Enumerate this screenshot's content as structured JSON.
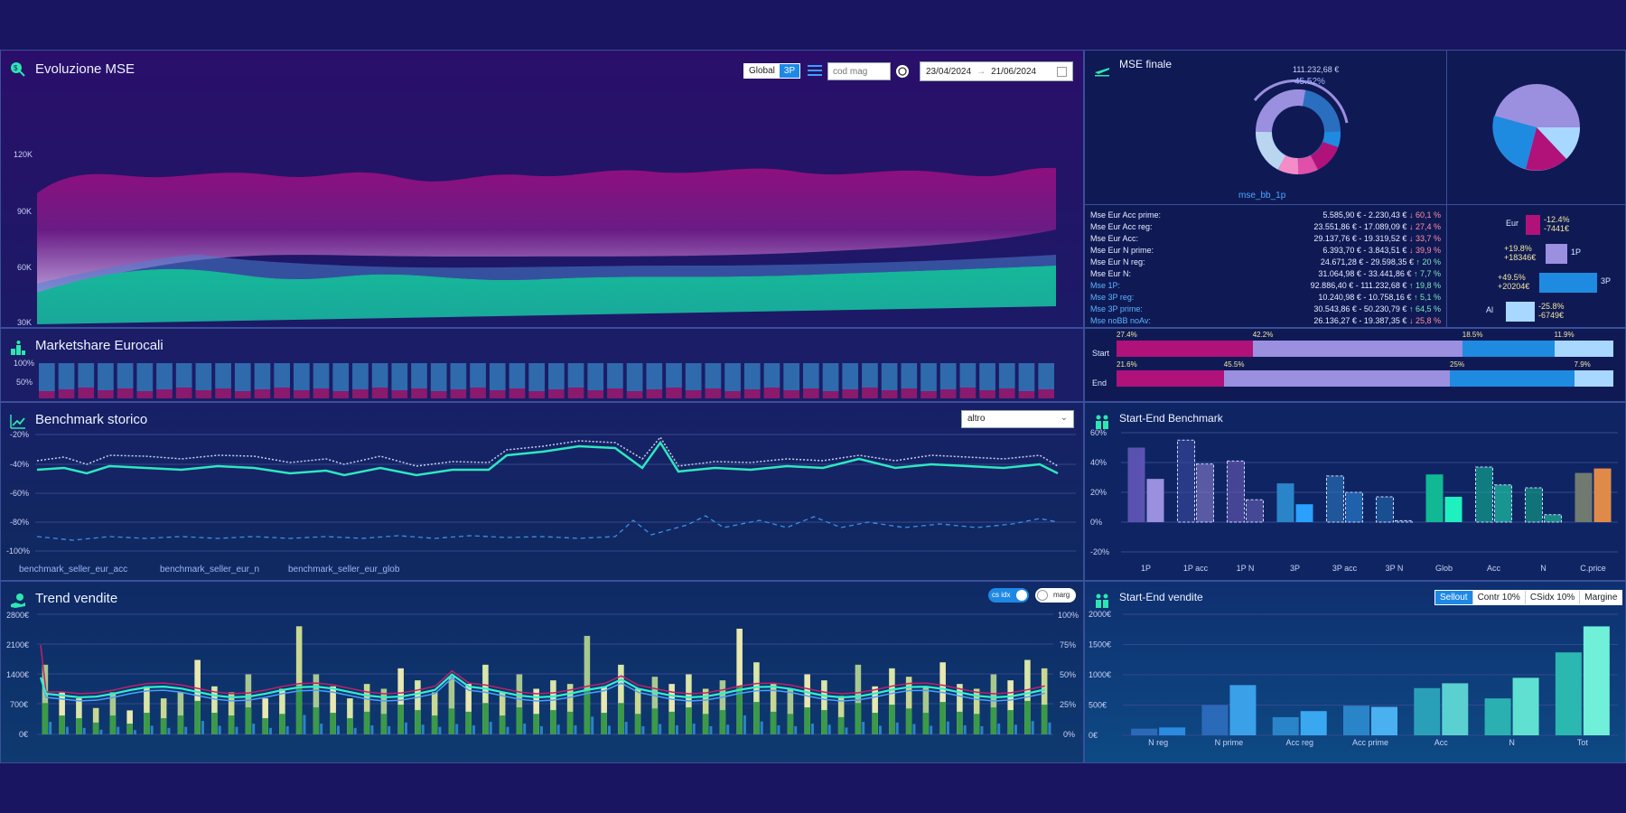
{
  "evo": {
    "title": "Evoluzione MSE",
    "toggle_global": "Global",
    "toggle_3p": "3P",
    "search_placeholder": "cod mag",
    "date_from": "23/04/2024",
    "date_sep": "→",
    "date_to": "21/06/2024",
    "yticks": [
      "120K",
      "90K",
      "60K",
      "30K"
    ]
  },
  "mse_finale": {
    "title": "MSE finale",
    "donut_value": "111.232,68 €",
    "donut_pct": "45.52%",
    "donut_label": "mse_bb_1p",
    "rows": [
      {
        "label": "Mse Eur Acc prime:",
        "value": "5.585,90 € - 2.230,43 €",
        "dir": "down",
        "pct": "60,1 %",
        "blue": false
      },
      {
        "label": "Mse Eur Acc reg:",
        "value": "23.551,86 € - 17.089,09 €",
        "dir": "down",
        "pct": "27,4 %",
        "blue": false
      },
      {
        "label": "Mse Eur Acc:",
        "value": "29.137,76 € - 19.319,52 €",
        "dir": "down",
        "pct": "33,7 %",
        "blue": false
      },
      {
        "label": "Mse Eur N prime:",
        "value": "6.393,70 € - 3.843,51 €",
        "dir": "down",
        "pct": "39,9 %",
        "blue": false
      },
      {
        "label": "Mse Eur N reg:",
        "value": "24.671,28 € - 29.598,35 €",
        "dir": "up",
        "pct": "20 %",
        "blue": false
      },
      {
        "label": "Mse Eur N:",
        "value": "31.064,98 € - 33.441,86 €",
        "dir": "up",
        "pct": "7,7 %",
        "blue": false
      },
      {
        "label": "Mse 1P:",
        "value": "92.886,40 € - 111.232,68 €",
        "dir": "up",
        "pct": "19,8 %",
        "blue": true
      },
      {
        "label": "Mse 3P reg:",
        "value": "10.240,98 € - 10.758,16 €",
        "dir": "up",
        "pct": "5,1 %",
        "blue": true
      },
      {
        "label": "Mse 3P prime:",
        "value": "30.543,86 € - 50.230,79 €",
        "dir": "up",
        "pct": "64,5 %",
        "blue": true
      },
      {
        "label": "Mse noBB noAv:",
        "value": "26.136,27 € - 19.387,35 €",
        "dir": "down",
        "pct": "25,8 %",
        "blue": true
      }
    ],
    "mini": [
      {
        "label": "Eur",
        "delta_pct": "-12.4%",
        "delta_abs": "-7441€",
        "color": "#b0127a"
      },
      {
        "label": "1P",
        "delta_pct": "+19.8%",
        "delta_abs": "+18346€",
        "color": "#9b8fe0"
      },
      {
        "label": "3P",
        "delta_pct": "+49.5%",
        "delta_abs": "+20204€",
        "color": "#1f8be0"
      },
      {
        "label": "Al",
        "delta_pct": "-25.8%",
        "delta_abs": "-6749€",
        "color": "#a8d8ff"
      }
    ]
  },
  "market": {
    "title": "Marketshare Eurocali",
    "yticks": [
      "100%",
      "50%"
    ],
    "start_label": "Start",
    "end_label": "End",
    "start": [
      27.4,
      42.2,
      18.5,
      11.9
    ],
    "end": [
      21.6,
      45.5,
      25,
      7.9
    ],
    "start_labels": [
      "27.4%",
      "42.2%",
      "18.5%",
      "11.9%"
    ],
    "end_labels": [
      "21.6%",
      "45.5%",
      "25%",
      "7.9%"
    ],
    "colors": [
      "#b0127a",
      "#9b8fe0",
      "#1f8be0",
      "#a8d8ff"
    ]
  },
  "bench": {
    "title": "Benchmark storico",
    "select_value": "altro",
    "yticks": [
      "-20%",
      "-40%",
      "-60%",
      "-80%",
      "-100%"
    ],
    "legend": [
      "benchmark_seller_eur_acc",
      "benchmark_seller_eur_n",
      "benchmark_seller_eur_glob"
    ]
  },
  "se_bench": {
    "title": "Start-End Benchmark",
    "yticks": [
      "60%",
      "40%",
      "20%",
      "0%",
      "-20%"
    ],
    "chart_data": {
      "type": "bar",
      "categories": [
        "1P",
        "1P acc",
        "1P N",
        "3P",
        "3P acc",
        "3P N",
        "Glob",
        "Acc",
        "N",
        "C.price"
      ],
      "series": [
        {
          "values": [
            50,
            55,
            41,
            26,
            31,
            17,
            32,
            37,
            23,
            33
          ]
        },
        {
          "values": [
            29,
            39,
            15,
            12,
            20,
            1,
            17,
            25,
            5,
            36
          ]
        }
      ],
      "ylim": [
        -20,
        60
      ]
    }
  },
  "trend": {
    "title": "Trend vendite",
    "toggle_csidx": "cs idx",
    "toggle_marg": "marg",
    "yticks_left": [
      "2800€",
      "2100€",
      "1400€",
      "700€",
      "0€"
    ],
    "yticks_right": [
      "100%",
      "75%",
      "50%",
      "25%",
      "0%"
    ]
  },
  "se_vendite": {
    "title": "Start-End vendite",
    "tabs": [
      "Sellout",
      "Contr 10%",
      "CSidx 10%",
      "Margine"
    ],
    "active_tab": 0,
    "yticks": [
      "2000€",
      "1500€",
      "1000€",
      "500€",
      "0€"
    ],
    "chart_data": {
      "type": "bar",
      "categories": [
        "N reg",
        "N prime",
        "Acc reg",
        "Acc prime",
        "Acc",
        "N",
        "Tot"
      ],
      "series": [
        {
          "values": [
            110,
            500,
            300,
            490,
            780,
            610,
            1370
          ]
        },
        {
          "values": [
            130,
            830,
            400,
            470,
            860,
            950,
            1800
          ]
        }
      ],
      "ylim": [
        0,
        2000
      ]
    }
  }
}
